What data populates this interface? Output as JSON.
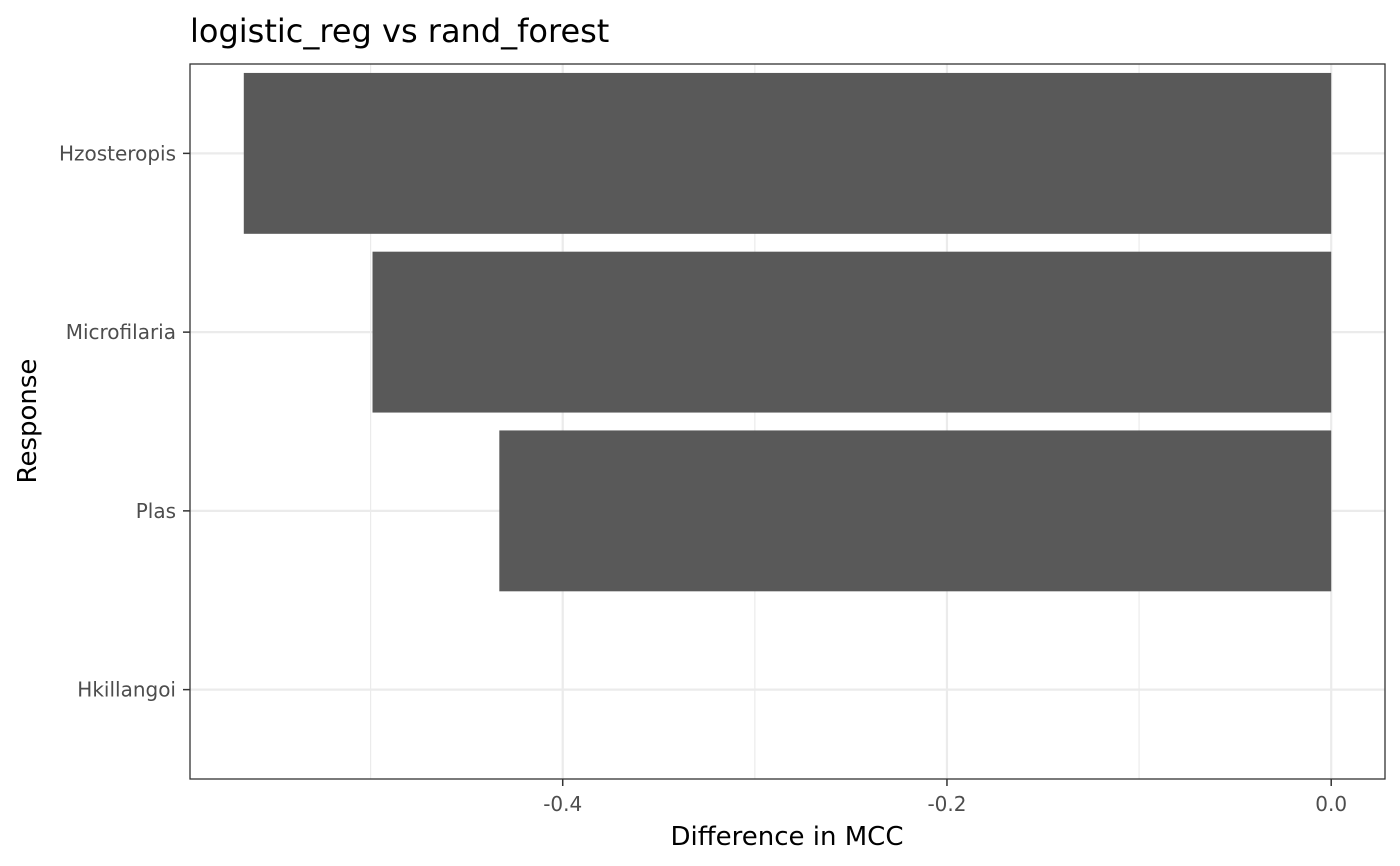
{
  "chart_data": {
    "type": "bar",
    "orientation": "horizontal",
    "title": "logistic_reg vs rand_forest",
    "xlabel": "Difference in MCC",
    "ylabel": "Response",
    "categories": [
      "Hzosteropis",
      "Microfilaria",
      "Plas",
      "Hkillangoi"
    ],
    "values": [
      -0.566,
      -0.499,
      -0.433,
      0.0
    ],
    "xlim": [
      -0.594,
      0.028
    ],
    "xticks": [
      -0.4,
      -0.2,
      0.0
    ],
    "xtick_labels": [
      "-0.4",
      "-0.2",
      "0.0"
    ],
    "grid": true,
    "legend": "none",
    "bar_color": "#595959",
    "grid_color": "#ebebeb",
    "panel_border_color": "#333333"
  }
}
